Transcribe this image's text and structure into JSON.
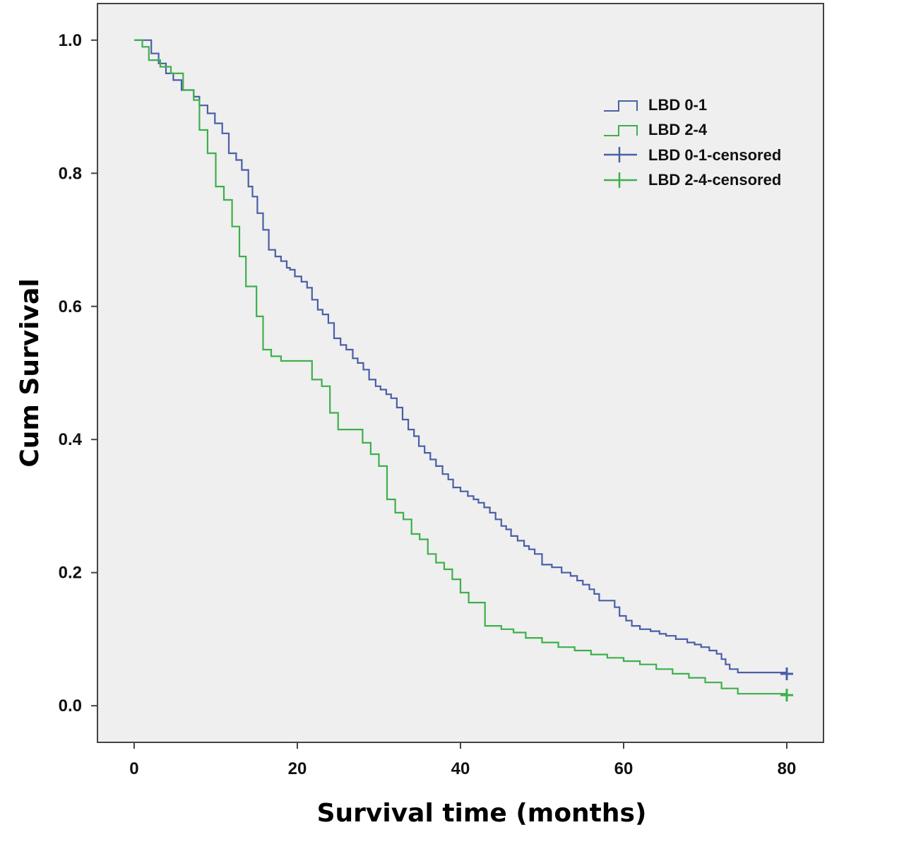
{
  "chart_data": {
    "type": "line",
    "subtype": "kaplan-meier-step",
    "xlabel": "Survival time (months)",
    "ylabel": "Cum Survival",
    "xlim": [
      -4.5,
      84.5
    ],
    "ylim": [
      -0.055,
      1.055
    ],
    "xticks": [
      0,
      20,
      40,
      60,
      80
    ],
    "yticks": [
      0.0,
      0.2,
      0.4,
      0.6,
      0.8,
      1.0
    ],
    "xtick_labels": [
      "0",
      "20",
      "40",
      "60",
      "80"
    ],
    "ytick_labels": [
      "0.0",
      "0.2",
      "0.4",
      "0.6",
      "0.8",
      "1.0"
    ],
    "grid": false,
    "legend_position": "top-right",
    "background": "#efefef",
    "legend": [
      "LBD 0-1",
      "LBD 2-4",
      "LBD 0-1-censored",
      "LBD 2-4-censored"
    ],
    "series": [
      {
        "name": "LBD 0-1",
        "color": "#4a5fa6",
        "censored_label": "LBD 0-1-censored",
        "censored": [
          [
            80.0,
            0.048
          ]
        ],
        "points": [
          [
            0.0,
            1.0
          ],
          [
            2.1,
            0.98
          ],
          [
            3.0,
            0.965
          ],
          [
            3.9,
            0.95
          ],
          [
            4.8,
            0.94
          ],
          [
            5.8,
            0.925
          ],
          [
            7.3,
            0.915
          ],
          [
            8.0,
            0.902
          ],
          [
            9.0,
            0.89
          ],
          [
            9.9,
            0.875
          ],
          [
            10.8,
            0.86
          ],
          [
            11.6,
            0.83
          ],
          [
            12.5,
            0.82
          ],
          [
            13.2,
            0.805
          ],
          [
            14.0,
            0.78
          ],
          [
            14.5,
            0.765
          ],
          [
            15.1,
            0.74
          ],
          [
            15.8,
            0.715
          ],
          [
            16.5,
            0.685
          ],
          [
            17.3,
            0.675
          ],
          [
            18.0,
            0.668
          ],
          [
            18.7,
            0.658
          ],
          [
            19.1,
            0.655
          ],
          [
            19.7,
            0.645
          ],
          [
            20.5,
            0.637
          ],
          [
            21.2,
            0.628
          ],
          [
            21.8,
            0.61
          ],
          [
            22.5,
            0.595
          ],
          [
            23.1,
            0.588
          ],
          [
            23.8,
            0.575
          ],
          [
            24.5,
            0.552
          ],
          [
            25.3,
            0.542
          ],
          [
            26.0,
            0.535
          ],
          [
            26.8,
            0.522
          ],
          [
            27.4,
            0.515
          ],
          [
            28.1,
            0.505
          ],
          [
            28.8,
            0.49
          ],
          [
            29.6,
            0.48
          ],
          [
            30.2,
            0.475
          ],
          [
            30.9,
            0.468
          ],
          [
            31.5,
            0.462
          ],
          [
            32.2,
            0.448
          ],
          [
            32.9,
            0.43
          ],
          [
            33.6,
            0.415
          ],
          [
            34.3,
            0.405
          ],
          [
            34.9,
            0.39
          ],
          [
            35.6,
            0.38
          ],
          [
            36.3,
            0.37
          ],
          [
            37.0,
            0.36
          ],
          [
            37.8,
            0.348
          ],
          [
            38.5,
            0.34
          ],
          [
            39.1,
            0.328
          ],
          [
            40.0,
            0.322
          ],
          [
            40.9,
            0.315
          ],
          [
            41.6,
            0.31
          ],
          [
            42.2,
            0.305
          ],
          [
            42.9,
            0.298
          ],
          [
            43.6,
            0.29
          ],
          [
            44.3,
            0.28
          ],
          [
            45.0,
            0.27
          ],
          [
            45.6,
            0.265
          ],
          [
            46.2,
            0.255
          ],
          [
            47.0,
            0.248
          ],
          [
            47.8,
            0.24
          ],
          [
            48.4,
            0.235
          ],
          [
            49.1,
            0.228
          ],
          [
            50.0,
            0.212
          ],
          [
            51.2,
            0.208
          ],
          [
            52.4,
            0.2
          ],
          [
            53.5,
            0.195
          ],
          [
            54.3,
            0.188
          ],
          [
            55.0,
            0.182
          ],
          [
            55.8,
            0.175
          ],
          [
            56.4,
            0.168
          ],
          [
            57.0,
            0.158
          ],
          [
            58.9,
            0.148
          ],
          [
            59.5,
            0.135
          ],
          [
            60.3,
            0.128
          ],
          [
            61.0,
            0.12
          ],
          [
            62.0,
            0.115
          ],
          [
            63.3,
            0.112
          ],
          [
            64.4,
            0.108
          ],
          [
            65.2,
            0.105
          ],
          [
            66.4,
            0.1
          ],
          [
            67.8,
            0.095
          ],
          [
            68.7,
            0.092
          ],
          [
            69.5,
            0.088
          ],
          [
            70.5,
            0.083
          ],
          [
            71.4,
            0.078
          ],
          [
            72.0,
            0.07
          ],
          [
            72.5,
            0.062
          ],
          [
            73.0,
            0.055
          ],
          [
            74.0,
            0.05
          ],
          [
            80.0,
            0.048
          ]
        ]
      },
      {
        "name": "LBD 2-4",
        "color": "#3db04b",
        "censored_label": "LBD 2-4-censored",
        "censored": [
          [
            80.0,
            0.016
          ]
        ],
        "points": [
          [
            0.0,
            1.0
          ],
          [
            1.0,
            0.99
          ],
          [
            1.8,
            0.97
          ],
          [
            3.2,
            0.96
          ],
          [
            4.5,
            0.95
          ],
          [
            6.0,
            0.925
          ],
          [
            7.3,
            0.91
          ],
          [
            8.0,
            0.865
          ],
          [
            9.0,
            0.83
          ],
          [
            10.0,
            0.78
          ],
          [
            11.0,
            0.76
          ],
          [
            12.0,
            0.72
          ],
          [
            12.9,
            0.675
          ],
          [
            13.7,
            0.63
          ],
          [
            15.0,
            0.585
          ],
          [
            15.8,
            0.535
          ],
          [
            16.8,
            0.525
          ],
          [
            18.0,
            0.518
          ],
          [
            20.0,
            0.518
          ],
          [
            21.8,
            0.49
          ],
          [
            23.0,
            0.48
          ],
          [
            24.0,
            0.44
          ],
          [
            25.0,
            0.415
          ],
          [
            27.0,
            0.415
          ],
          [
            28.0,
            0.395
          ],
          [
            29.0,
            0.378
          ],
          [
            30.0,
            0.36
          ],
          [
            31.0,
            0.31
          ],
          [
            32.0,
            0.29
          ],
          [
            33.0,
            0.28
          ],
          [
            34.0,
            0.258
          ],
          [
            35.0,
            0.25
          ],
          [
            36.0,
            0.228
          ],
          [
            37.0,
            0.215
          ],
          [
            38.0,
            0.205
          ],
          [
            39.0,
            0.19
          ],
          [
            40.0,
            0.17
          ],
          [
            41.0,
            0.155
          ],
          [
            43.0,
            0.12
          ],
          [
            45.0,
            0.115
          ],
          [
            46.5,
            0.11
          ],
          [
            48.0,
            0.102
          ],
          [
            50.0,
            0.095
          ],
          [
            52.0,
            0.088
          ],
          [
            54.0,
            0.083
          ],
          [
            56.0,
            0.077
          ],
          [
            58.0,
            0.072
          ],
          [
            60.0,
            0.067
          ],
          [
            62.0,
            0.062
          ],
          [
            64.0,
            0.055
          ],
          [
            66.0,
            0.048
          ],
          [
            68.0,
            0.042
          ],
          [
            70.0,
            0.035
          ],
          [
            72.0,
            0.026
          ],
          [
            74.0,
            0.018
          ],
          [
            80.0,
            0.016
          ]
        ]
      }
    ]
  }
}
